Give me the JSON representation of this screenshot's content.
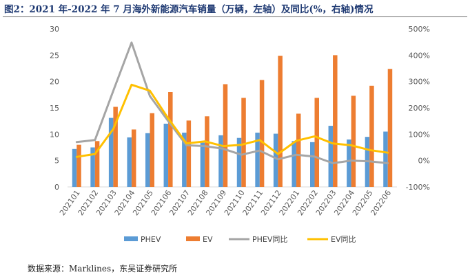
{
  "title": "图2：2021 年-2022 年 7 月海外新能源汽车销量（万辆，左轴）及同比(%，右轴)情况",
  "source": "数据来源：Marklines，东吴证券研究所",
  "chart_data": {
    "type": "bar",
    "categories": [
      "202101",
      "202102",
      "202103",
      "202104",
      "202105",
      "202106",
      "202107",
      "202108",
      "202109",
      "202110",
      "202111",
      "202112",
      "202201",
      "202202",
      "202203",
      "202204",
      "202205",
      "202206"
    ],
    "series": [
      {
        "name": "PHEV",
        "kind": "bar",
        "axis": "left",
        "color": "#5b9bd5",
        "values": [
          7.2,
          7.5,
          13.1,
          9.4,
          10.2,
          12.0,
          10.3,
          8.4,
          9.8,
          9.3,
          10.3,
          10.1,
          8.7,
          8.5,
          11.6,
          9.0,
          9.5,
          10.5
        ]
      },
      {
        "name": "EV",
        "kind": "bar",
        "axis": "left",
        "color": "#ed7d31",
        "values": [
          8.0,
          8.7,
          15.2,
          10.9,
          14.0,
          18.0,
          12.6,
          13.4,
          19.5,
          16.9,
          20.3,
          24.9,
          13.9,
          16.9,
          25.0,
          17.3,
          19.2,
          22.4
        ]
      },
      {
        "name": "PHEV同比",
        "kind": "line",
        "axis": "right",
        "color": "#a5a5a5",
        "values": [
          70,
          78,
          265,
          448,
          245,
          150,
          58,
          55,
          45,
          22,
          38,
          5,
          22,
          15,
          -10,
          0,
          -3,
          -10
        ]
      },
      {
        "name": "EV同比",
        "kind": "line",
        "axis": "right",
        "color": "#ffc000",
        "values": [
          14,
          25,
          120,
          288,
          265,
          160,
          65,
          73,
          55,
          60,
          78,
          25,
          75,
          92,
          65,
          58,
          40,
          30
        ]
      }
    ],
    "yleft": {
      "min": 0,
      "max": 30,
      "ticks": [
        "0",
        "5",
        "10",
        "15",
        "20",
        "25",
        "30"
      ]
    },
    "yright": {
      "min": -100,
      "max": 500,
      "ticks": [
        "-100%",
        "0%",
        "100%",
        "200%",
        "300%",
        "400%",
        "500%"
      ]
    },
    "legend": {
      "position": "bottom",
      "items": [
        "PHEV",
        "EV",
        "PHEV同比",
        "EV同比"
      ]
    }
  }
}
